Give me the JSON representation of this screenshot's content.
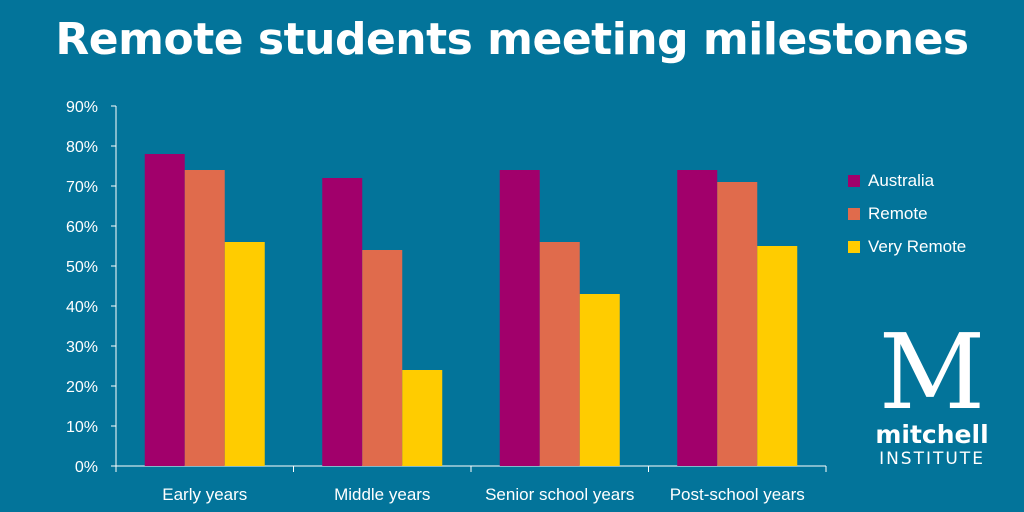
{
  "title": "Remote students meeting milestones",
  "colors": {
    "background": "#03749a",
    "Australia": "#a1006b",
    "Remote": "#e06b4c",
    "Very Remote": "#ffcc00"
  },
  "logo": {
    "mark": "M",
    "word": "mitchell",
    "sub": "INSTITUTE"
  },
  "chart_data": {
    "type": "bar",
    "title": "Remote students meeting milestones",
    "categories": [
      "Early years",
      "Middle years",
      "Senior school years",
      "Post-school years"
    ],
    "series": [
      {
        "name": "Australia",
        "values": [
          78,
          72,
          74,
          74
        ]
      },
      {
        "name": "Remote",
        "values": [
          74,
          54,
          56,
          71
        ]
      },
      {
        "name": "Very Remote",
        "values": [
          56,
          24,
          43,
          55
        ]
      }
    ],
    "ylim": [
      0,
      90
    ],
    "yticks": [
      "0%",
      "10%",
      "20%",
      "30%",
      "40%",
      "50%",
      "60%",
      "70%",
      "80%",
      "90%"
    ],
    "xlabel": "",
    "ylabel": "",
    "grid": false,
    "legend": "right"
  }
}
